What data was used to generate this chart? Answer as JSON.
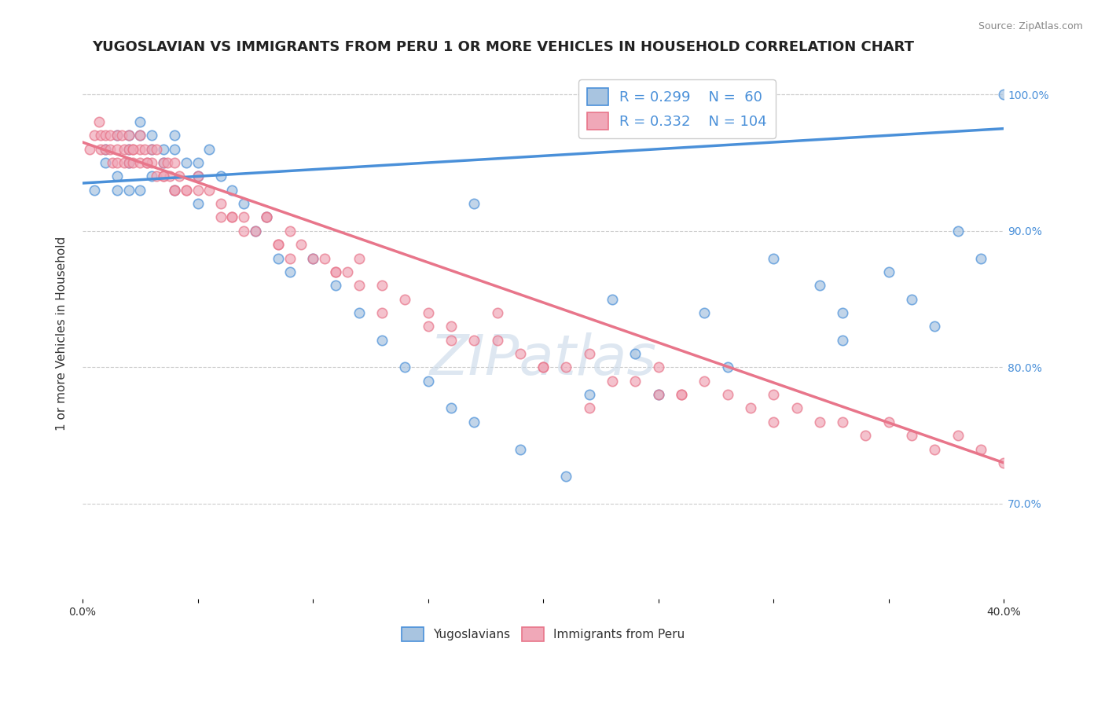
{
  "title": "YUGOSLAVIAN VS IMMIGRANTS FROM PERU 1 OR MORE VEHICLES IN HOUSEHOLD CORRELATION CHART",
  "source_text": "Source: ZipAtlas.com",
  "xlabel": "",
  "ylabel": "1 or more Vehicles in Household",
  "xlim": [
    0.0,
    0.4
  ],
  "ylim": [
    0.63,
    1.02
  ],
  "xticks": [
    0.0,
    0.05,
    0.1,
    0.15,
    0.2,
    0.25,
    0.3,
    0.35,
    0.4
  ],
  "xtick_labels": [
    "0.0%",
    "",
    "",
    "",
    "",
    "",
    "",
    "",
    "40.0%"
  ],
  "ytick_labels_right": [
    "70.0%",
    "80.0%",
    "90.0%",
    "100.0%"
  ],
  "ytick_positions_right": [
    0.7,
    0.8,
    0.9,
    1.0
  ],
  "legend_R1": "R = 0.299",
  "legend_N1": "N =  60",
  "legend_R2": "R = 0.332",
  "legend_N2": "N = 104",
  "blue_color": "#a8c4e0",
  "pink_color": "#f0a8b8",
  "blue_line_color": "#4a90d9",
  "pink_line_color": "#e8758a",
  "watermark_color": "#c8d8e8",
  "background_color": "#ffffff",
  "blue_scatter_x": [
    0.005,
    0.01,
    0.01,
    0.015,
    0.015,
    0.015,
    0.02,
    0.02,
    0.02,
    0.02,
    0.025,
    0.025,
    0.025,
    0.03,
    0.03,
    0.03,
    0.035,
    0.035,
    0.04,
    0.04,
    0.04,
    0.045,
    0.05,
    0.05,
    0.05,
    0.055,
    0.06,
    0.065,
    0.07,
    0.075,
    0.08,
    0.085,
    0.09,
    0.1,
    0.11,
    0.12,
    0.13,
    0.14,
    0.15,
    0.16,
    0.17,
    0.19,
    0.21,
    0.23,
    0.24,
    0.25,
    0.27,
    0.3,
    0.32,
    0.33,
    0.35,
    0.36,
    0.37,
    0.39,
    0.4,
    0.33,
    0.28,
    0.22,
    0.17,
    0.38
  ],
  "blue_scatter_y": [
    0.93,
    0.96,
    0.95,
    0.97,
    0.94,
    0.93,
    0.97,
    0.96,
    0.95,
    0.93,
    0.98,
    0.97,
    0.93,
    0.97,
    0.96,
    0.94,
    0.96,
    0.95,
    0.97,
    0.96,
    0.93,
    0.95,
    0.95,
    0.94,
    0.92,
    0.96,
    0.94,
    0.93,
    0.92,
    0.9,
    0.91,
    0.88,
    0.87,
    0.88,
    0.86,
    0.84,
    0.82,
    0.8,
    0.79,
    0.77,
    0.76,
    0.74,
    0.72,
    0.85,
    0.81,
    0.78,
    0.84,
    0.88,
    0.86,
    0.84,
    0.87,
    0.85,
    0.83,
    0.88,
    1.0,
    0.82,
    0.8,
    0.78,
    0.92,
    0.9
  ],
  "pink_scatter_x": [
    0.003,
    0.005,
    0.007,
    0.008,
    0.008,
    0.01,
    0.01,
    0.012,
    0.012,
    0.013,
    0.015,
    0.015,
    0.015,
    0.017,
    0.018,
    0.018,
    0.02,
    0.02,
    0.02,
    0.022,
    0.022,
    0.025,
    0.025,
    0.025,
    0.027,
    0.028,
    0.03,
    0.03,
    0.032,
    0.032,
    0.035,
    0.035,
    0.037,
    0.038,
    0.04,
    0.04,
    0.042,
    0.045,
    0.05,
    0.05,
    0.055,
    0.06,
    0.065,
    0.07,
    0.075,
    0.08,
    0.085,
    0.09,
    0.095,
    0.1,
    0.105,
    0.11,
    0.115,
    0.12,
    0.13,
    0.14,
    0.15,
    0.16,
    0.17,
    0.18,
    0.19,
    0.2,
    0.21,
    0.22,
    0.23,
    0.24,
    0.25,
    0.26,
    0.27,
    0.28,
    0.29,
    0.3,
    0.31,
    0.32,
    0.33,
    0.34,
    0.35,
    0.36,
    0.37,
    0.38,
    0.39,
    0.4,
    0.22,
    0.16,
    0.13,
    0.25,
    0.2,
    0.18,
    0.08,
    0.12,
    0.07,
    0.09,
    0.11,
    0.06,
    0.04,
    0.3,
    0.26,
    0.15,
    0.085,
    0.065,
    0.045,
    0.035,
    0.028,
    0.022
  ],
  "pink_scatter_y": [
    0.96,
    0.97,
    0.98,
    0.97,
    0.96,
    0.97,
    0.96,
    0.97,
    0.96,
    0.95,
    0.97,
    0.96,
    0.95,
    0.97,
    0.96,
    0.95,
    0.97,
    0.96,
    0.95,
    0.96,
    0.95,
    0.97,
    0.96,
    0.95,
    0.96,
    0.95,
    0.96,
    0.95,
    0.96,
    0.94,
    0.95,
    0.94,
    0.95,
    0.94,
    0.95,
    0.93,
    0.94,
    0.93,
    0.94,
    0.93,
    0.93,
    0.92,
    0.91,
    0.91,
    0.9,
    0.91,
    0.89,
    0.9,
    0.89,
    0.88,
    0.88,
    0.87,
    0.87,
    0.88,
    0.86,
    0.85,
    0.84,
    0.83,
    0.82,
    0.82,
    0.81,
    0.8,
    0.8,
    0.81,
    0.79,
    0.79,
    0.8,
    0.78,
    0.79,
    0.78,
    0.77,
    0.78,
    0.77,
    0.76,
    0.76,
    0.75,
    0.76,
    0.75,
    0.74,
    0.75,
    0.74,
    0.73,
    0.77,
    0.82,
    0.84,
    0.78,
    0.8,
    0.84,
    0.91,
    0.86,
    0.9,
    0.88,
    0.87,
    0.91,
    0.93,
    0.76,
    0.78,
    0.83,
    0.89,
    0.91,
    0.93,
    0.94,
    0.95,
    0.96
  ],
  "blue_trend_x": [
    0.0,
    0.4
  ],
  "blue_trend_y": [
    0.935,
    0.975
  ],
  "pink_trend_x": [
    0.0,
    0.4
  ],
  "pink_trend_y": [
    0.965,
    0.73
  ],
  "title_fontsize": 13,
  "axis_label_fontsize": 11,
  "tick_fontsize": 10,
  "legend_fontsize": 13,
  "scatter_size": 80,
  "scatter_alpha": 0.7,
  "scatter_linewidth": 1.2
}
